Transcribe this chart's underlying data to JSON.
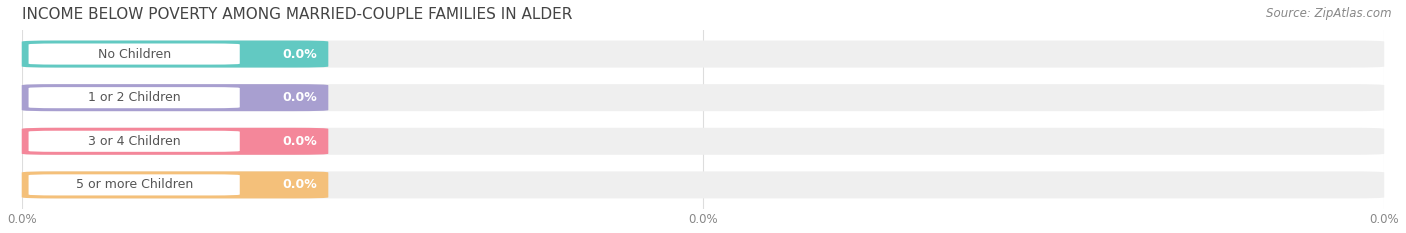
{
  "title": "INCOME BELOW POVERTY AMONG MARRIED-COUPLE FAMILIES IN ALDER",
  "source": "Source: ZipAtlas.com",
  "categories": [
    "No Children",
    "1 or 2 Children",
    "3 or 4 Children",
    "5 or more Children"
  ],
  "values": [
    0.0,
    0.0,
    0.0,
    0.0
  ],
  "bar_colors": [
    "#62C9C2",
    "#A89FD0",
    "#F4879A",
    "#F4C07A"
  ],
  "bar_bg_color": "#EFEFEF",
  "background_color": "#FFFFFF",
  "grid_color": "#DDDDDD",
  "title_fontsize": 11,
  "source_fontsize": 8.5,
  "tick_fontsize": 8.5,
  "label_fontsize": 9,
  "value_fontsize": 9
}
